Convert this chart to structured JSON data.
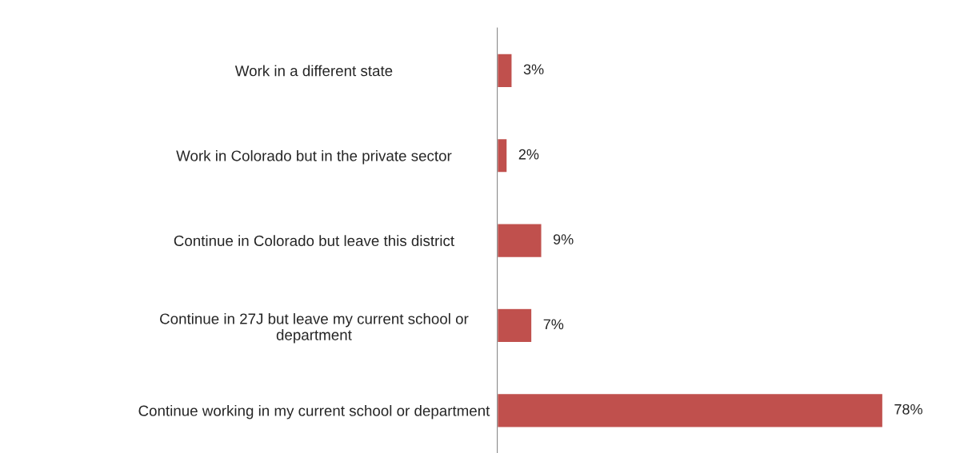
{
  "chart_data": {
    "type": "bar",
    "orientation": "horizontal",
    "categories": [
      "Work in a different state",
      "Work in Colorado but in the private sector",
      "Continue in Colorado but leave this district",
      "Continue in 27J but leave my current school or\ndepartment",
      "Continue working in my current school or department"
    ],
    "values": [
      3,
      2,
      9,
      7,
      78
    ],
    "value_labels": [
      "3%",
      "2%",
      "9%",
      "7%",
      "78%"
    ],
    "color": "#c0504d",
    "grid": false,
    "legend": false,
    "tick_labels": "y"
  }
}
